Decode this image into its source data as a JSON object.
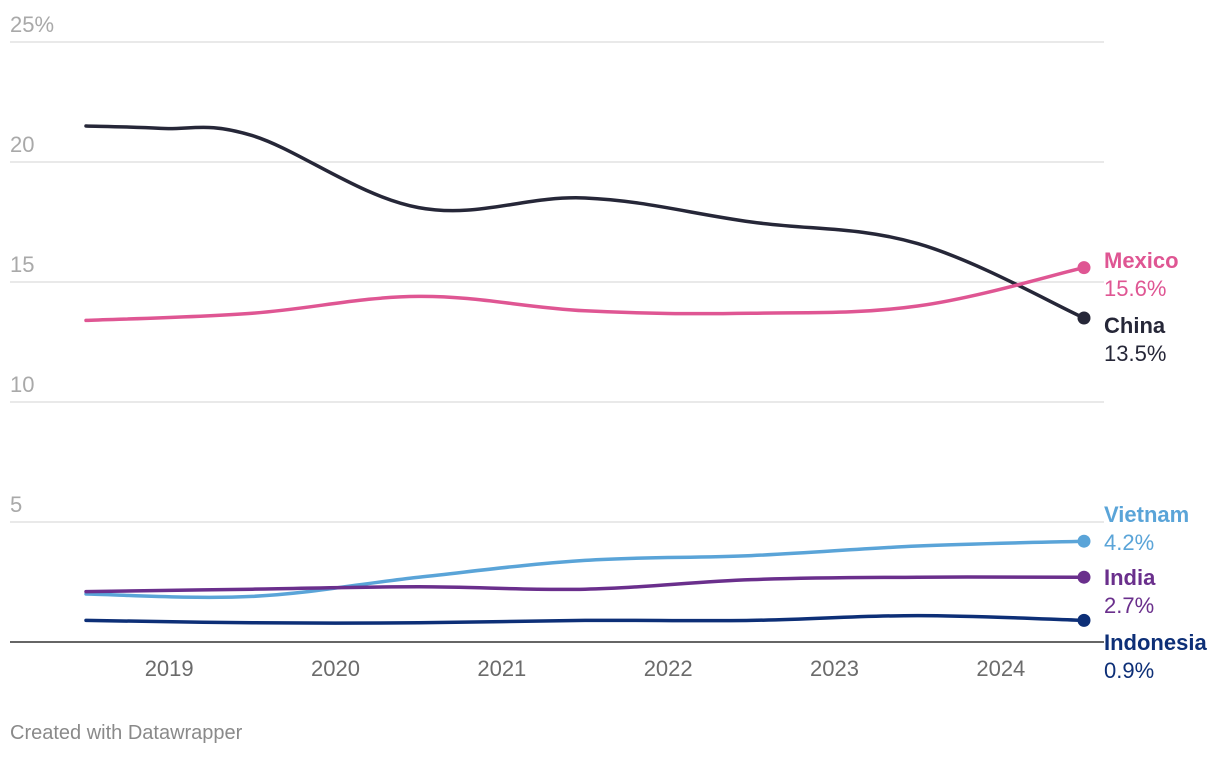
{
  "chart_data": {
    "type": "line",
    "title": "",
    "xlabel": "",
    "ylabel": "",
    "ylim": [
      0,
      25
    ],
    "xlim": [
      2018.8,
      2024.8
    ],
    "x_tick_labels": [
      "2019",
      "2020",
      "2021",
      "2022",
      "2023",
      "2024"
    ],
    "y_ticks": [
      {
        "value": 5,
        "label": "5"
      },
      {
        "value": 10,
        "label": "10"
      },
      {
        "value": 15,
        "label": "15"
      },
      {
        "value": 20,
        "label": "20"
      },
      {
        "value": 25,
        "label": "25%"
      }
    ],
    "grid": true,
    "series": [
      {
        "name": "China",
        "end_label": "13.5%",
        "color": "#262738",
        "x": [
          2018.8,
          2019.25,
          2019.8,
          2020.8,
          2021.8,
          2022.8,
          2023.8,
          2024.8
        ],
        "values": [
          21.5,
          21.4,
          21.1,
          18.1,
          18.5,
          17.5,
          16.6,
          13.5
        ]
      },
      {
        "name": "Mexico",
        "end_label": "15.6%",
        "color": "#df5693",
        "x": [
          2018.8,
          2019.8,
          2020.8,
          2021.8,
          2022.8,
          2023.8,
          2024.8
        ],
        "values": [
          13.4,
          13.7,
          14.4,
          13.8,
          13.7,
          14.0,
          15.6
        ]
      },
      {
        "name": "Vietnam",
        "end_label": "4.2%",
        "color": "#5aa4d8",
        "x": [
          2018.8,
          2019.8,
          2020.8,
          2021.8,
          2022.8,
          2023.8,
          2024.8
        ],
        "values": [
          2.0,
          1.9,
          2.7,
          3.4,
          3.6,
          4.0,
          4.2
        ]
      },
      {
        "name": "India",
        "end_label": "2.7%",
        "color": "#6a2f8c",
        "x": [
          2018.8,
          2019.8,
          2020.8,
          2021.8,
          2022.8,
          2023.8,
          2024.8
        ],
        "values": [
          2.1,
          2.2,
          2.3,
          2.2,
          2.6,
          2.7,
          2.7
        ]
      },
      {
        "name": "Indonesia",
        "end_label": "0.9%",
        "color": "#0d2f77",
        "x": [
          2018.8,
          2019.8,
          2020.8,
          2021.8,
          2022.8,
          2023.8,
          2024.8
        ],
        "values": [
          0.9,
          0.8,
          0.8,
          0.9,
          0.9,
          1.1,
          0.9
        ]
      }
    ]
  },
  "footer": {
    "credit": "Created with Datawrapper"
  }
}
